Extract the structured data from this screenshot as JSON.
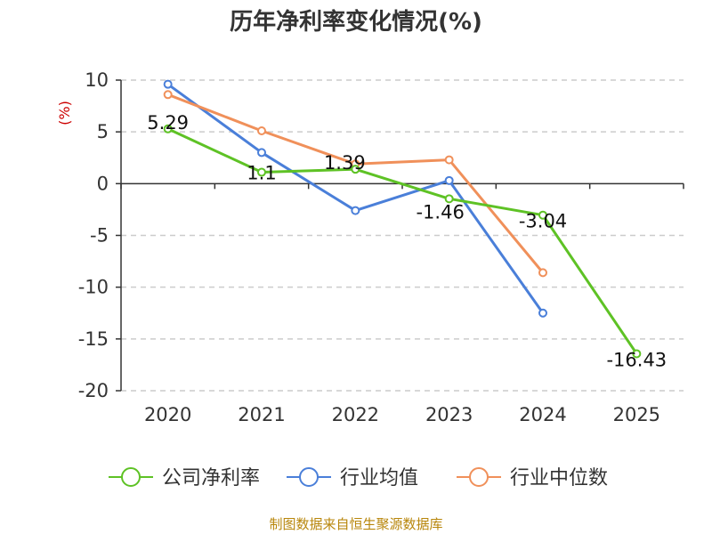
{
  "chart_data": {
    "type": "line",
    "title": "历年净利率变化情况(%)",
    "ylabel": "(%)",
    "xlabel": "",
    "categories": [
      "2020",
      "2021",
      "2022",
      "2023",
      "2024",
      "2025"
    ],
    "ylim": [
      -20,
      10
    ],
    "yticks": [
      10,
      5,
      0,
      -5,
      -10,
      -15,
      -20
    ],
    "grid": true,
    "legend_position": "bottom",
    "series": [
      {
        "name": "公司净利率",
        "color": "#5ec225",
        "values": [
          5.29,
          1.1,
          1.39,
          -1.46,
          -3.04,
          -16.43
        ],
        "labels": [
          "5.29",
          "1.1",
          "1.39",
          "-1.46",
          "-3.04",
          "-16.43"
        ]
      },
      {
        "name": "行业均值",
        "color": "#4a7fd9",
        "values": [
          9.6,
          3.0,
          -2.6,
          0.3,
          -12.5,
          null
        ]
      },
      {
        "name": "行业中位数",
        "color": "#f0905a",
        "values": [
          8.6,
          5.1,
          1.9,
          2.3,
          -8.6,
          null
        ]
      }
    ]
  },
  "source": "制图数据来自恒生聚源数据库"
}
